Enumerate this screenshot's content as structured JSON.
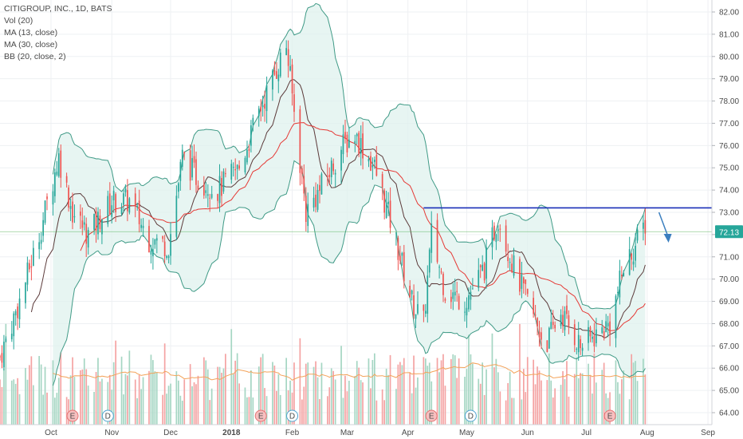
{
  "legend": {
    "title": "CITIGROUP, INC., 1D, BATS",
    "items": [
      "Vol (20)",
      "MA (13, close)",
      "MA (30, close)",
      "BB (20, close, 2)"
    ]
  },
  "colors": {
    "up": "#26a69a",
    "down": "#ef5350",
    "ma13": "#5b3a3a",
    "ma30": "#e53935",
    "bb": "#3f9a86",
    "bbFill": "#dff1ee",
    "resistance": "#1a2fb8",
    "arrow": "#3b7fbf",
    "priceLine": "#4caf50",
    "volUp": "#a5d6c3",
    "volDown": "#f4a3a3",
    "volMA": "#f3a35a"
  },
  "chart_data": {
    "type": "candlestick",
    "ylim": [
      63.5,
      82.5
    ],
    "y_ticks": [
      "82.00",
      "81.00",
      "80.00",
      "79.00",
      "78.00",
      "77.00",
      "76.00",
      "75.00",
      "74.00",
      "73.00",
      "72.00",
      "71.00",
      "70.00",
      "69.00",
      "68.00",
      "67.00",
      "66.00",
      "65.00",
      "64.00"
    ],
    "x_ticks": [
      {
        "label": "Oct",
        "date": "2017-10-01",
        "bold": false
      },
      {
        "label": "Nov",
        "date": "2017-11-01",
        "bold": false
      },
      {
        "label": "Dec",
        "date": "2017-12-01",
        "bold": false
      },
      {
        "label": "2018",
        "date": "2018-01-01",
        "bold": true
      },
      {
        "label": "Feb",
        "date": "2018-02-01",
        "bold": false
      },
      {
        "label": "Mar",
        "date": "2018-03-01",
        "bold": false
      },
      {
        "label": "Apr",
        "date": "2018-04-01",
        "bold": false
      },
      {
        "label": "May",
        "date": "2018-05-01",
        "bold": false
      },
      {
        "label": "Jun",
        "date": "2018-06-01",
        "bold": false
      },
      {
        "label": "Jul",
        "date": "2018-07-01",
        "bold": false
      },
      {
        "label": "Aug",
        "date": "2018-08-01",
        "bold": false
      },
      {
        "label": "Sep",
        "date": "2018-09-01",
        "bold": false
      }
    ],
    "x_range": [
      "2017-09-05",
      "2018-09-03"
    ],
    "last_price": "72.13",
    "resistance": {
      "value": 73.2,
      "from": "2018-04-09",
      "to": "2018-09-03"
    },
    "events": [
      {
        "label": "E",
        "date": "2017-10-12",
        "type": "earnings"
      },
      {
        "label": "D",
        "date": "2017-10-30",
        "type": "dividend"
      },
      {
        "label": "E",
        "date": "2018-01-16",
        "type": "earnings"
      },
      {
        "label": "D",
        "date": "2018-02-01",
        "type": "dividend"
      },
      {
        "label": "E",
        "date": "2018-04-13",
        "type": "earnings"
      },
      {
        "label": "D",
        "date": "2018-05-03",
        "type": "dividend"
      },
      {
        "label": "E",
        "date": "2018-07-13",
        "type": "earnings"
      }
    ],
    "anchors": [
      [
        "2017-09-05",
        66.5
      ],
      [
        "2017-09-15",
        69.0
      ],
      [
        "2017-09-25",
        72.0
      ],
      [
        "2017-10-05",
        75.5
      ],
      [
        "2017-10-12",
        73.0
      ],
      [
        "2017-10-20",
        72.0
      ],
      [
        "2017-11-01",
        73.5
      ],
      [
        "2017-11-10",
        73.5
      ],
      [
        "2017-11-20",
        71.8
      ],
      [
        "2017-11-30",
        71.5
      ],
      [
        "2017-12-07",
        75.5
      ],
      [
        "2017-12-15",
        74.5
      ],
      [
        "2017-12-25",
        74.0
      ],
      [
        "2018-01-05",
        75.0
      ],
      [
        "2018-01-15",
        77.5
      ],
      [
        "2018-01-29",
        80.5
      ],
      [
        "2018-02-08",
        73.0
      ],
      [
        "2018-02-15",
        74.0
      ],
      [
        "2018-02-27",
        76.0
      ],
      [
        "2018-03-05",
        76.5
      ],
      [
        "2018-03-15",
        75.0
      ],
      [
        "2018-03-25",
        72.0
      ],
      [
        "2018-04-03",
        69.0
      ],
      [
        "2018-04-09",
        68.0
      ],
      [
        "2018-04-13",
        72.0
      ],
      [
        "2018-04-20",
        69.5
      ],
      [
        "2018-04-30",
        69.0
      ],
      [
        "2018-05-10",
        70.5
      ],
      [
        "2018-05-17",
        72.8
      ],
      [
        "2018-05-25",
        70.5
      ],
      [
        "2018-06-01",
        69.0
      ],
      [
        "2018-06-10",
        67.0
      ],
      [
        "2018-06-18",
        68.5
      ],
      [
        "2018-06-28",
        67.0
      ],
      [
        "2018-07-06",
        67.5
      ],
      [
        "2018-07-13",
        68.0
      ],
      [
        "2018-07-20",
        70.5
      ],
      [
        "2018-07-26",
        71.5
      ],
      [
        "2018-07-31",
        72.5
      ]
    ],
    "volume_axis_max": 13
  }
}
